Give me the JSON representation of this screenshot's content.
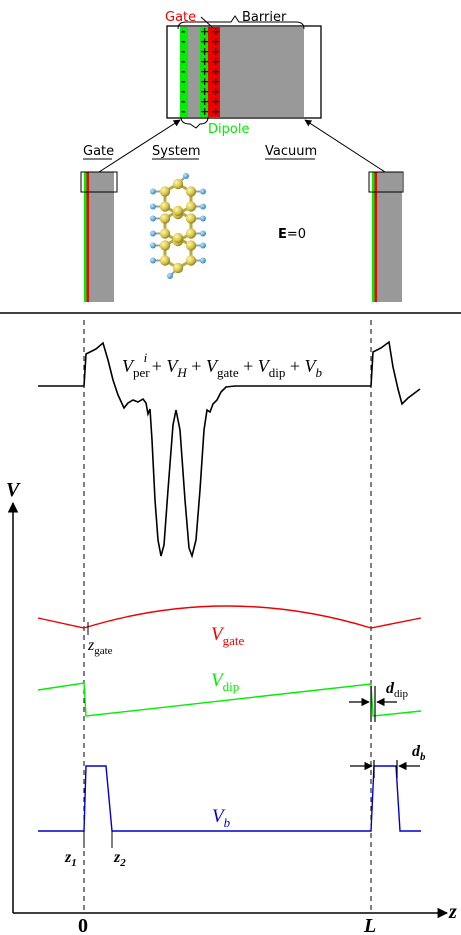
{
  "top_panel": {
    "zoom_labels": {
      "gate": "Gate",
      "barrier": "Barrier",
      "dipole": "Dipole"
    },
    "minus_sign": "-",
    "plus_sign": "+",
    "column_labels": {
      "gate": "Gate",
      "system": "System",
      "vacuum": "Vacuum"
    },
    "field_label": {
      "symbol": "E",
      "value": "=0"
    }
  },
  "bottom_panel": {
    "total_potential": {
      "v1": "V",
      "v1_sub": "per",
      "v1_sup": "i",
      "plus1": " + ",
      "v2": "V",
      "v2_sub": "H",
      "plus2": " + ",
      "v3": "V",
      "v3_sub": "gate",
      "plus3": " + ",
      "v4": "V",
      "v4_sub": "dip",
      "plus4": " + ",
      "v5": "V",
      "v5_sub": "b"
    },
    "axis": {
      "y_label": "V",
      "x_label": "z",
      "tick_zero": "0",
      "tick_L": "L"
    },
    "v_gate_label": {
      "main": "V",
      "sub": "gate"
    },
    "v_dip_label": {
      "main": "V",
      "sub": "dip"
    },
    "v_b_label": {
      "main": "V",
      "sub": "b"
    },
    "z_gate": {
      "main": "z",
      "sub": "gate"
    },
    "d_dip": {
      "main": "d",
      "sub": "dip"
    },
    "d_b": {
      "main": "d",
      "sub": "b"
    },
    "z1": {
      "main": "z",
      "sub": "1"
    },
    "z2": {
      "main": "z",
      "sub": "2"
    }
  },
  "colors": {
    "gate": "#ee0000",
    "dipole": "#00ee00",
    "barrier": "#999999",
    "vb": "#0000cc",
    "atom_c": "#d8c44a",
    "atom_h": "#3aa0d0"
  }
}
